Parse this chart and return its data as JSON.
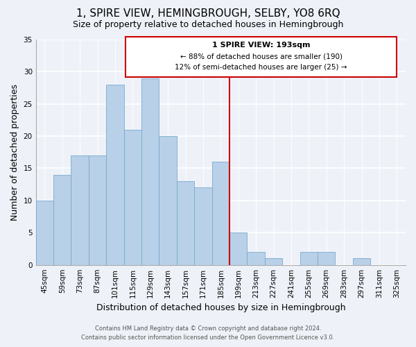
{
  "title": "1, SPIRE VIEW, HEMINGBROUGH, SELBY, YO8 6RQ",
  "subtitle": "Size of property relative to detached houses in Hemingbrough",
  "xlabel": "Distribution of detached houses by size in Hemingbrough",
  "ylabel": "Number of detached properties",
  "bar_color": "#b8d0e8",
  "bar_edge_color": "#7aaace",
  "categories": [
    "45sqm",
    "59sqm",
    "73sqm",
    "87sqm",
    "101sqm",
    "115sqm",
    "129sqm",
    "143sqm",
    "157sqm",
    "171sqm",
    "185sqm",
    "199sqm",
    "213sqm",
    "227sqm",
    "241sqm",
    "255sqm",
    "269sqm",
    "283sqm",
    "297sqm",
    "311sqm",
    "325sqm"
  ],
  "values": [
    10,
    14,
    17,
    17,
    28,
    21,
    29,
    20,
    13,
    12,
    16,
    5,
    2,
    1,
    0,
    2,
    2,
    0,
    1,
    0,
    0
  ],
  "ylim": [
    0,
    35
  ],
  "yticks": [
    0,
    5,
    10,
    15,
    20,
    25,
    30,
    35
  ],
  "red_line_index": 10.5,
  "property_line_label": "1 SPIRE VIEW: 193sqm",
  "annotation_line1": "← 88% of detached houses are smaller (190)",
  "annotation_line2": "12% of semi-detached houses are larger (25) →",
  "footer_line1": "Contains HM Land Registry data © Crown copyright and database right 2024.",
  "footer_line2": "Contains public sector information licensed under the Open Government Licence v3.0.",
  "background_color": "#eef2f8",
  "grid_color": "#ffffff",
  "title_fontsize": 11,
  "subtitle_fontsize": 9,
  "axis_label_fontsize": 9,
  "tick_fontsize": 7.5,
  "annotation_fontsize": 8
}
